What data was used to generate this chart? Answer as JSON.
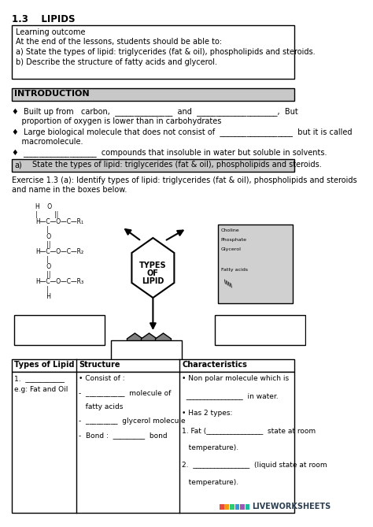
{
  "title": "1.3    LIPIDS",
  "learning_outcome_title": "Learning outcome",
  "learning_outcome_lines": [
    "At the end of the lessons, students should be able to:",
    "a) State the types of lipid: triglycerides (fat & oil), phospholipids and steroids.",
    "b) Describe the structure of fatty acids and glycerol."
  ],
  "intro_header": "INTRODUCTION",
  "bullet1": "♦  Built up from   carbon,  _______________  and  _____________________,  But\n    proportion of oxygen is lower than in carbohydrates",
  "bullet2": "♦  Large biological molecule that does not consist of  ___________________  but it is called\n    macromolecule.",
  "bullet3": "♦  ___________________  compounds that insoluble in water but soluble in solvents.",
  "section_a_label": "a)",
  "section_a_text": "State the types of lipid: triglycerides (fat & oil), phospholipids and steroids.",
  "exercise_text": "Exercise 1.3 (a): Identify types of lipid: triglycerides (fat & oil), phospholipids and steroids\nand name in the boxes below.",
  "table_headers": [
    "Types of Lipid",
    "Structure",
    "Characteristics"
  ],
  "table_col1": [
    "1.  ___________",
    "e.g: Fat and Oil"
  ],
  "table_col2_lines": [
    "• Consist of :",
    "-  ___________  molecule of",
    "   fatty acids",
    "-  _________  glycerol molecule",
    "-  Bond :  _________  bond"
  ],
  "table_col3_lines": [
    "• Non polar molecule which is",
    "  ________________  in water.",
    "• Has 2 types:",
    "1. Fat (________________  state at room",
    "   temperature).",
    "2.  ________________  (liquid state at room",
    "   temperature)."
  ],
  "liveworksheets_text": "LIVEWORKSHEETS",
  "bg_color": "#ffffff",
  "section_header_bg": "#c8c8c8",
  "section_a_bg": "#c8c8c8",
  "border_color": "#000000",
  "text_color": "#000000"
}
